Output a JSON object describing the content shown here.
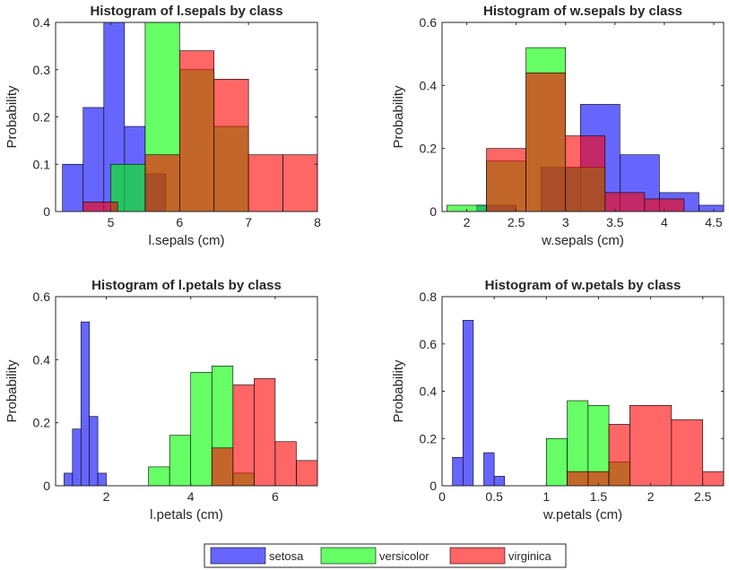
{
  "legend": {
    "entries": [
      {
        "label": "setosa",
        "color": "#0000ff"
      },
      {
        "label": "versicolor",
        "color": "#00ff00"
      },
      {
        "label": "virginica",
        "color": "#ff0000"
      }
    ],
    "placement": "bottom-center"
  },
  "chart_data": [
    {
      "type": "bar",
      "subtype": "overlaid-histogram",
      "title": "Histogram of l.sepals by class",
      "xlabel": "l.sepals (cm)",
      "ylabel": "Probability",
      "xlim": [
        4.2,
        8
      ],
      "ylim": [
        0,
        0.4
      ],
      "xticks": [
        5,
        6,
        7,
        8
      ],
      "yticks": [
        0,
        0.1,
        0.2,
        0.3,
        0.4
      ],
      "series": [
        {
          "name": "setosa",
          "bins": [
            {
              "x0": 4.3,
              "x1": 4.6,
              "value": 0.1
            },
            {
              "x0": 4.6,
              "x1": 4.9,
              "value": 0.22
            },
            {
              "x0": 4.9,
              "x1": 5.2,
              "value": 0.4
            },
            {
              "x0": 5.2,
              "x1": 5.5,
              "value": 0.18
            },
            {
              "x0": 5.5,
              "x1": 5.8,
              "value": 0.08
            }
          ]
        },
        {
          "name": "versicolor",
          "bins": [
            {
              "x0": 5.0,
              "x1": 5.5,
              "value": 0.1
            },
            {
              "x0": 5.5,
              "x1": 6.0,
              "value": 0.4
            },
            {
              "x0": 6.0,
              "x1": 6.5,
              "value": 0.3
            },
            {
              "x0": 6.5,
              "x1": 7.0,
              "value": 0.18
            }
          ]
        },
        {
          "name": "virginica",
          "bins": [
            {
              "x0": 4.6,
              "x1": 5.1,
              "value": 0.02
            },
            {
              "x0": 5.5,
              "x1": 6.0,
              "value": 0.12
            },
            {
              "x0": 6.0,
              "x1": 6.5,
              "value": 0.34
            },
            {
              "x0": 6.5,
              "x1": 7.0,
              "value": 0.28
            },
            {
              "x0": 7.0,
              "x1": 7.5,
              "value": 0.12
            },
            {
              "x0": 7.5,
              "x1": 8.0,
              "value": 0.12
            }
          ]
        }
      ]
    },
    {
      "type": "bar",
      "subtype": "overlaid-histogram",
      "title": "Histogram of w.sepals by class",
      "xlabel": "w.sepals (cm)",
      "ylabel": "Probability",
      "xlim": [
        1.75,
        4.6
      ],
      "ylim": [
        0,
        0.6
      ],
      "xticks": [
        2,
        2.5,
        3,
        3.5,
        4,
        4.5
      ],
      "yticks": [
        0,
        0.2,
        0.4,
        0.6
      ],
      "series": [
        {
          "name": "setosa",
          "bins": [
            {
              "x0": 2.1,
              "x1": 2.5,
              "value": 0.02
            },
            {
              "x0": 2.75,
              "x1": 3.15,
              "value": 0.14
            },
            {
              "x0": 3.15,
              "x1": 3.55,
              "value": 0.34
            },
            {
              "x0": 3.55,
              "x1": 3.95,
              "value": 0.18
            },
            {
              "x0": 3.95,
              "x1": 4.35,
              "value": 0.06
            },
            {
              "x0": 4.35,
              "x1": 4.75,
              "value": 0.02
            }
          ]
        },
        {
          "name": "versicolor",
          "bins": [
            {
              "x0": 1.8,
              "x1": 2.2,
              "value": 0.02
            },
            {
              "x0": 2.2,
              "x1": 2.6,
              "value": 0.16
            },
            {
              "x0": 2.6,
              "x1": 3.0,
              "value": 0.52
            },
            {
              "x0": 3.0,
              "x1": 3.4,
              "value": 0.14
            }
          ]
        },
        {
          "name": "virginica",
          "bins": [
            {
              "x0": 2.2,
              "x1": 2.6,
              "value": 0.2
            },
            {
              "x0": 2.6,
              "x1": 3.0,
              "value": 0.44
            },
            {
              "x0": 3.0,
              "x1": 3.4,
              "value": 0.24
            },
            {
              "x0": 3.4,
              "x1": 3.8,
              "value": 0.06
            },
            {
              "x0": 3.8,
              "x1": 4.2,
              "value": 0.04
            }
          ]
        }
      ]
    },
    {
      "type": "bar",
      "subtype": "overlaid-histogram",
      "title": "Histogram of l.petals by class",
      "xlabel": "l.petals (cm)",
      "ylabel": "Probability",
      "xlim": [
        0.8,
        7
      ],
      "ylim": [
        0,
        0.6
      ],
      "xticks": [
        2,
        4,
        6
      ],
      "yticks": [
        0,
        0.2,
        0.4,
        0.6
      ],
      "series": [
        {
          "name": "setosa",
          "bins": [
            {
              "x0": 1.0,
              "x1": 1.2,
              "value": 0.04
            },
            {
              "x0": 1.2,
              "x1": 1.4,
              "value": 0.18
            },
            {
              "x0": 1.4,
              "x1": 1.6,
              "value": 0.52
            },
            {
              "x0": 1.6,
              "x1": 1.8,
              "value": 0.22
            },
            {
              "x0": 1.8,
              "x1": 2.0,
              "value": 0.04
            }
          ]
        },
        {
          "name": "versicolor",
          "bins": [
            {
              "x0": 3.0,
              "x1": 3.5,
              "value": 0.06
            },
            {
              "x0": 3.5,
              "x1": 4.0,
              "value": 0.16
            },
            {
              "x0": 4.0,
              "x1": 4.5,
              "value": 0.36
            },
            {
              "x0": 4.5,
              "x1": 5.0,
              "value": 0.38
            },
            {
              "x0": 5.0,
              "x1": 5.5,
              "value": 0.04
            }
          ]
        },
        {
          "name": "virginica",
          "bins": [
            {
              "x0": 4.5,
              "x1": 5.0,
              "value": 0.12
            },
            {
              "x0": 5.0,
              "x1": 5.5,
              "value": 0.32
            },
            {
              "x0": 5.5,
              "x1": 6.0,
              "value": 0.34
            },
            {
              "x0": 6.0,
              "x1": 6.5,
              "value": 0.14
            },
            {
              "x0": 6.5,
              "x1": 7.0,
              "value": 0.08
            }
          ]
        }
      ]
    },
    {
      "type": "bar",
      "subtype": "overlaid-histogram",
      "title": "Histogram of w.petals by class",
      "xlabel": "w.petals (cm)",
      "ylabel": "Probability",
      "xlim": [
        0,
        2.7
      ],
      "ylim": [
        0,
        0.8
      ],
      "xticks": [
        0,
        0.5,
        1,
        1.5,
        2,
        2.5
      ],
      "yticks": [
        0,
        0.2,
        0.4,
        0.6,
        0.8
      ],
      "series": [
        {
          "name": "setosa",
          "bins": [
            {
              "x0": 0.1,
              "x1": 0.2,
              "value": 0.12
            },
            {
              "x0": 0.2,
              "x1": 0.3,
              "value": 0.7
            },
            {
              "x0": 0.4,
              "x1": 0.5,
              "value": 0.14
            },
            {
              "x0": 0.5,
              "x1": 0.6,
              "value": 0.04
            }
          ]
        },
        {
          "name": "versicolor",
          "bins": [
            {
              "x0": 1.0,
              "x1": 1.2,
              "value": 0.2
            },
            {
              "x0": 1.2,
              "x1": 1.4,
              "value": 0.36
            },
            {
              "x0": 1.4,
              "x1": 1.6,
              "value": 0.34
            },
            {
              "x0": 1.6,
              "x1": 1.8,
              "value": 0.1
            }
          ]
        },
        {
          "name": "virginica",
          "bins": [
            {
              "x0": 1.2,
              "x1": 1.4,
              "value": 0.06
            },
            {
              "x0": 1.4,
              "x1": 1.6,
              "value": 0.06
            },
            {
              "x0": 1.6,
              "x1": 1.8,
              "value": 0.26
            },
            {
              "x0": 1.8,
              "x1": 2.2,
              "value": 0.34
            },
            {
              "x0": 2.2,
              "x1": 2.5,
              "value": 0.28
            },
            {
              "x0": 2.5,
              "x1": 2.7,
              "value": 0.06
            }
          ]
        }
      ]
    }
  ]
}
